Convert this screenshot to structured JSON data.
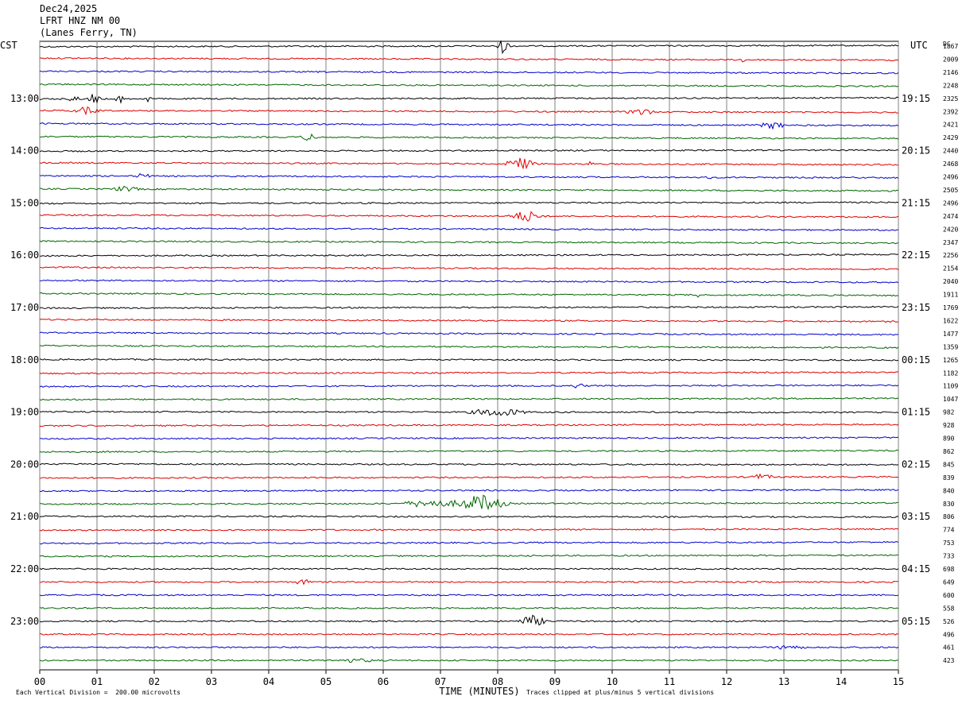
{
  "header": {
    "date": "Dec24,2025",
    "station": "LFRT HNZ NM 00",
    "location": "(Lanes Ferry, TN)"
  },
  "chart_data": {
    "type": "line",
    "title": "",
    "left_timezone": "CST",
    "right_timezone": "UTC",
    "dc_label": "DC",
    "xlabel": "TIME (MINUTES)",
    "x_ticks": [
      "00",
      "01",
      "02",
      "03",
      "04",
      "05",
      "06",
      "07",
      "08",
      "09",
      "10",
      "11",
      "12",
      "13",
      "14",
      "15"
    ],
    "xlim": [
      0,
      15
    ],
    "trace_colors": [
      "#000000",
      "#dd0000",
      "#0000cc",
      "#006600"
    ],
    "left_hour_labels": [
      "13:00",
      "14:00",
      "15:00",
      "16:00",
      "17:00",
      "18:00",
      "19:00",
      "20:00",
      "21:00",
      "22:00",
      "23:00"
    ],
    "right_hour_labels": [
      "19:15",
      "20:15",
      "21:15",
      "22:15",
      "23:15",
      "00:15",
      "01:15",
      "02:15",
      "03:15",
      "04:15",
      "05:15"
    ],
    "dc_offsets": [
      1867,
      2009,
      2146,
      2248,
      2325,
      2392,
      2421,
      2429,
      2440,
      2468,
      2496,
      2505,
      2496,
      2474,
      2420,
      2347,
      2256,
      2154,
      2040,
      1911,
      1769,
      1622,
      1477,
      1359,
      1265,
      1182,
      1109,
      1047,
      982,
      928,
      890,
      862,
      845,
      839,
      840,
      830,
      806,
      774,
      753,
      733,
      698,
      649,
      600,
      558,
      526,
      496,
      461,
      423
    ],
    "events": [
      {
        "trace": 0,
        "minute": 8.1,
        "amp": 9,
        "width": 0.15
      },
      {
        "trace": 1,
        "minute": 12.3,
        "amp": 5,
        "width": 0.05
      },
      {
        "trace": 4,
        "minute": 0.6,
        "amp": 6,
        "width": 0.1
      },
      {
        "trace": 4,
        "minute": 0.95,
        "amp": 8,
        "width": 0.12
      },
      {
        "trace": 4,
        "minute": 1.4,
        "amp": 5,
        "width": 0.1
      },
      {
        "trace": 4,
        "minute": 1.9,
        "amp": 4,
        "width": 0.08
      },
      {
        "trace": 5,
        "minute": 0.8,
        "amp": 4,
        "width": 0.3
      },
      {
        "trace": 5,
        "minute": 10.5,
        "amp": 4,
        "width": 0.3
      },
      {
        "trace": 6,
        "minute": 12.8,
        "amp": 4,
        "width": 0.3
      },
      {
        "trace": 7,
        "minute": 4.7,
        "amp": 4,
        "width": 0.2
      },
      {
        "trace": 9,
        "minute": 8.4,
        "amp": 7,
        "width": 0.35
      },
      {
        "trace": 9,
        "minute": 9.6,
        "amp": 3,
        "width": 0.1
      },
      {
        "trace": 10,
        "minute": 1.8,
        "amp": 4,
        "width": 0.15
      },
      {
        "trace": 10,
        "minute": 11.7,
        "amp": 4,
        "width": 0.05
      },
      {
        "trace": 11,
        "minute": 1.5,
        "amp": 3,
        "width": 0.3
      },
      {
        "trace": 13,
        "minute": 8.5,
        "amp": 7,
        "width": 0.35
      },
      {
        "trace": 19,
        "minute": 11.5,
        "amp": 7,
        "width": 0.03
      },
      {
        "trace": 26,
        "minute": 9.4,
        "amp": 3,
        "width": 0.15
      },
      {
        "trace": 28,
        "minute": 8.0,
        "amp": 5,
        "width": 0.6
      },
      {
        "trace": 33,
        "minute": 12.6,
        "amp": 3,
        "width": 0.3
      },
      {
        "trace": 35,
        "minute": 7.7,
        "amp": 11,
        "width": 0.55
      },
      {
        "trace": 35,
        "minute": 6.8,
        "amp": 5,
        "width": 0.6
      },
      {
        "trace": 41,
        "minute": 4.6,
        "amp": 3,
        "width": 0.2
      },
      {
        "trace": 44,
        "minute": 8.6,
        "amp": 7,
        "width": 0.3
      },
      {
        "trace": 46,
        "minute": 13.1,
        "amp": 3,
        "width": 0.3
      },
      {
        "trace": 47,
        "minute": 5.5,
        "amp": 2,
        "width": 0.5
      }
    ]
  },
  "footer": {
    "scale_note": "Each Vertical Division =  200.00 microvolts",
    "clip_note": "Traces clipped at plus/minus 5 vertical divisions"
  }
}
